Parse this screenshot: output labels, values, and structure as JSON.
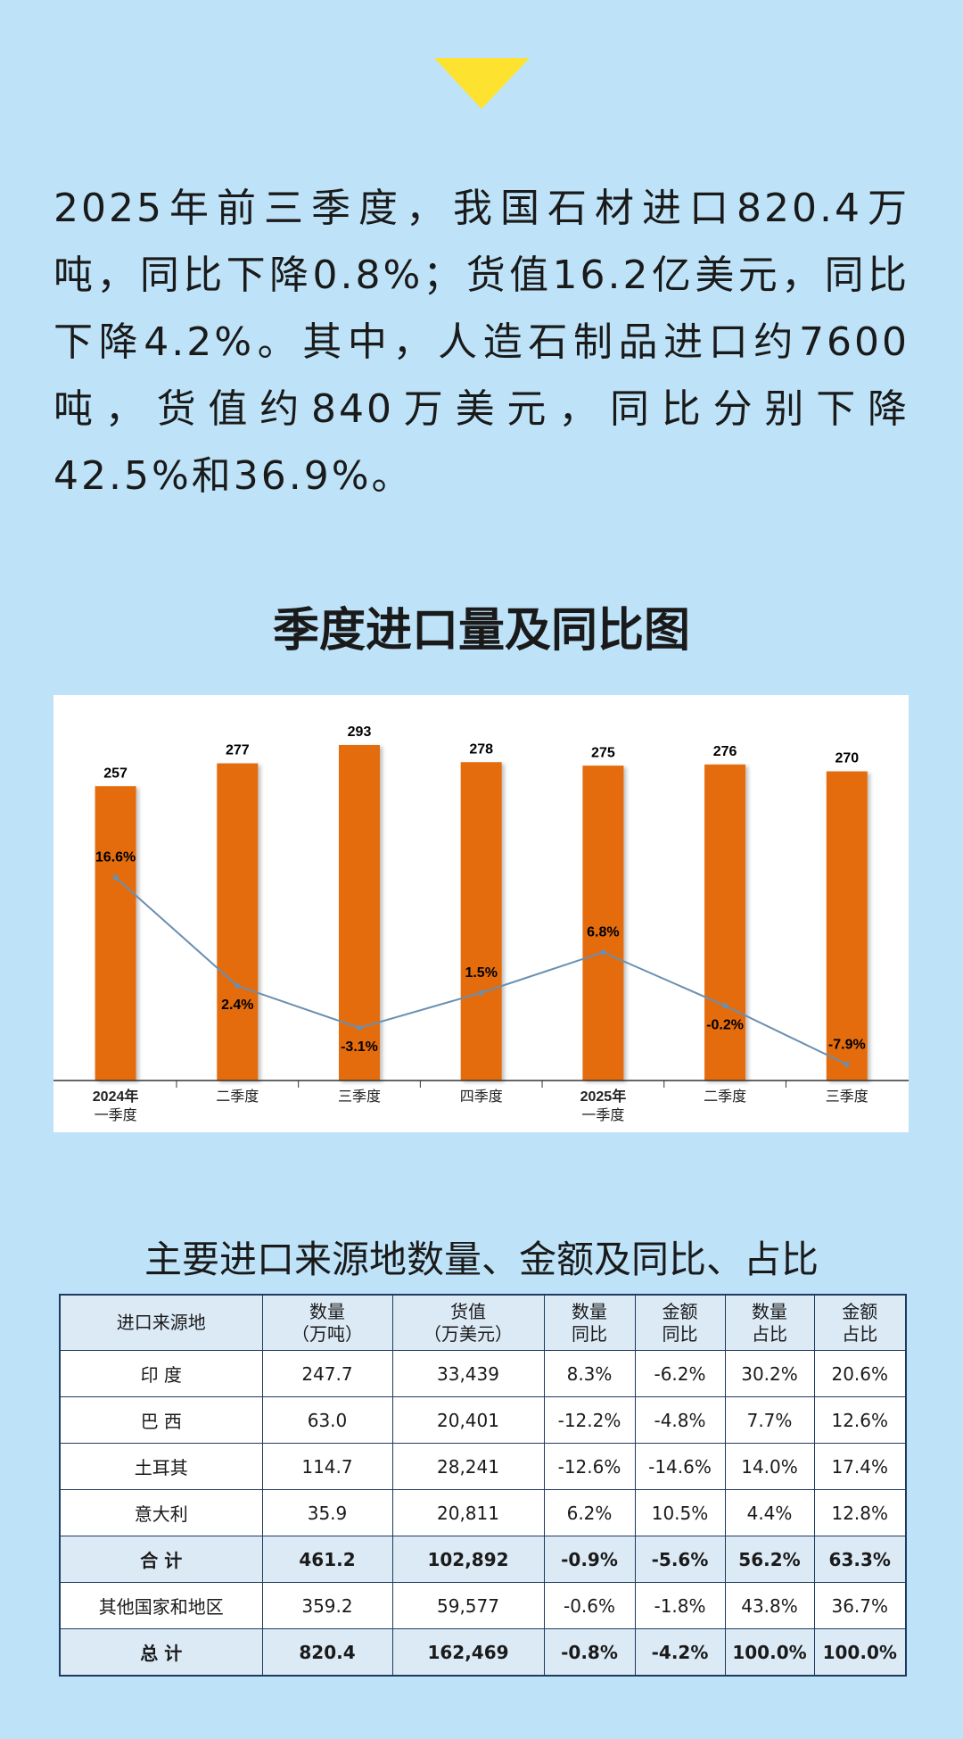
{
  "paragraph": [
    "2025年前三季度，我国石材进口820.4万",
    "吨，同比下降0.8%；货值16.2亿美元，同比",
    "下降4.2%。其中，人造石制品进口约7600",
    "吨，货值约840万美元，同比分别下降",
    "42.5%和36.9%。"
  ],
  "chart_data": {
    "type": "bar-line",
    "title": "季度进口量及同比图",
    "categories": [
      [
        "2024年",
        "一季度"
      ],
      "二季度",
      "三季度",
      "四季度",
      [
        "2025年",
        "一季度"
      ],
      "二季度",
      "三季度"
    ],
    "series": [
      {
        "type": "bar",
        "color": "#e46c0a",
        "values": [
          257,
          277,
          293,
          278,
          275,
          276,
          270
        ]
      },
      {
        "type": "line",
        "axis": "y2",
        "color": "#6a8fb0",
        "values": [
          16.6,
          2.4,
          -3.1,
          1.5,
          6.8,
          -0.2,
          -7.9
        ],
        "value_labels": [
          "16.6%",
          "2.4%",
          "-3.1%",
          "1.5%",
          "6.8%",
          "-0.2%",
          "-7.9%"
        ]
      }
    ],
    "ylim": [
      0,
      300
    ],
    "y2lim": [
      -10,
      35
    ]
  },
  "table": {
    "title": "主要进口来源地数量、金额及同比、占比",
    "header": [
      [
        "进口来源地"
      ],
      [
        "数量",
        "（万吨）"
      ],
      [
        "货值",
        "（万美元）"
      ],
      [
        "数量",
        "同比"
      ],
      [
        "金额",
        "同比"
      ],
      [
        "数量",
        "占比"
      ],
      [
        "金额",
        "占比"
      ]
    ],
    "rows": [
      [
        "印 度",
        "247.7",
        "33,439",
        "8.3%",
        "-6.2%",
        "30.2%",
        "20.6%"
      ],
      [
        "巴 西",
        "63.0",
        "20,401",
        "-12.2%",
        "-4.8%",
        "7.7%",
        "12.6%"
      ],
      [
        "土耳其",
        "114.7",
        "28,241",
        "-12.6%",
        "-14.6%",
        "14.0%",
        "17.4%"
      ],
      [
        "意大利",
        "35.9",
        "20,811",
        "6.2%",
        "10.5%",
        "4.4%",
        "12.8%"
      ],
      [
        "合 计",
        "461.2",
        "102,892",
        "-0.9%",
        "-5.6%",
        "56.2%",
        "63.3%"
      ],
      [
        "其他国家和地区",
        "359.2",
        "59,577",
        "-0.6%",
        "-1.8%",
        "43.8%",
        "36.7%"
      ],
      [
        "总 计",
        "820.4",
        "162,469",
        "-0.8%",
        "-4.2%",
        "100.0%",
        "100.0%"
      ]
    ]
  }
}
